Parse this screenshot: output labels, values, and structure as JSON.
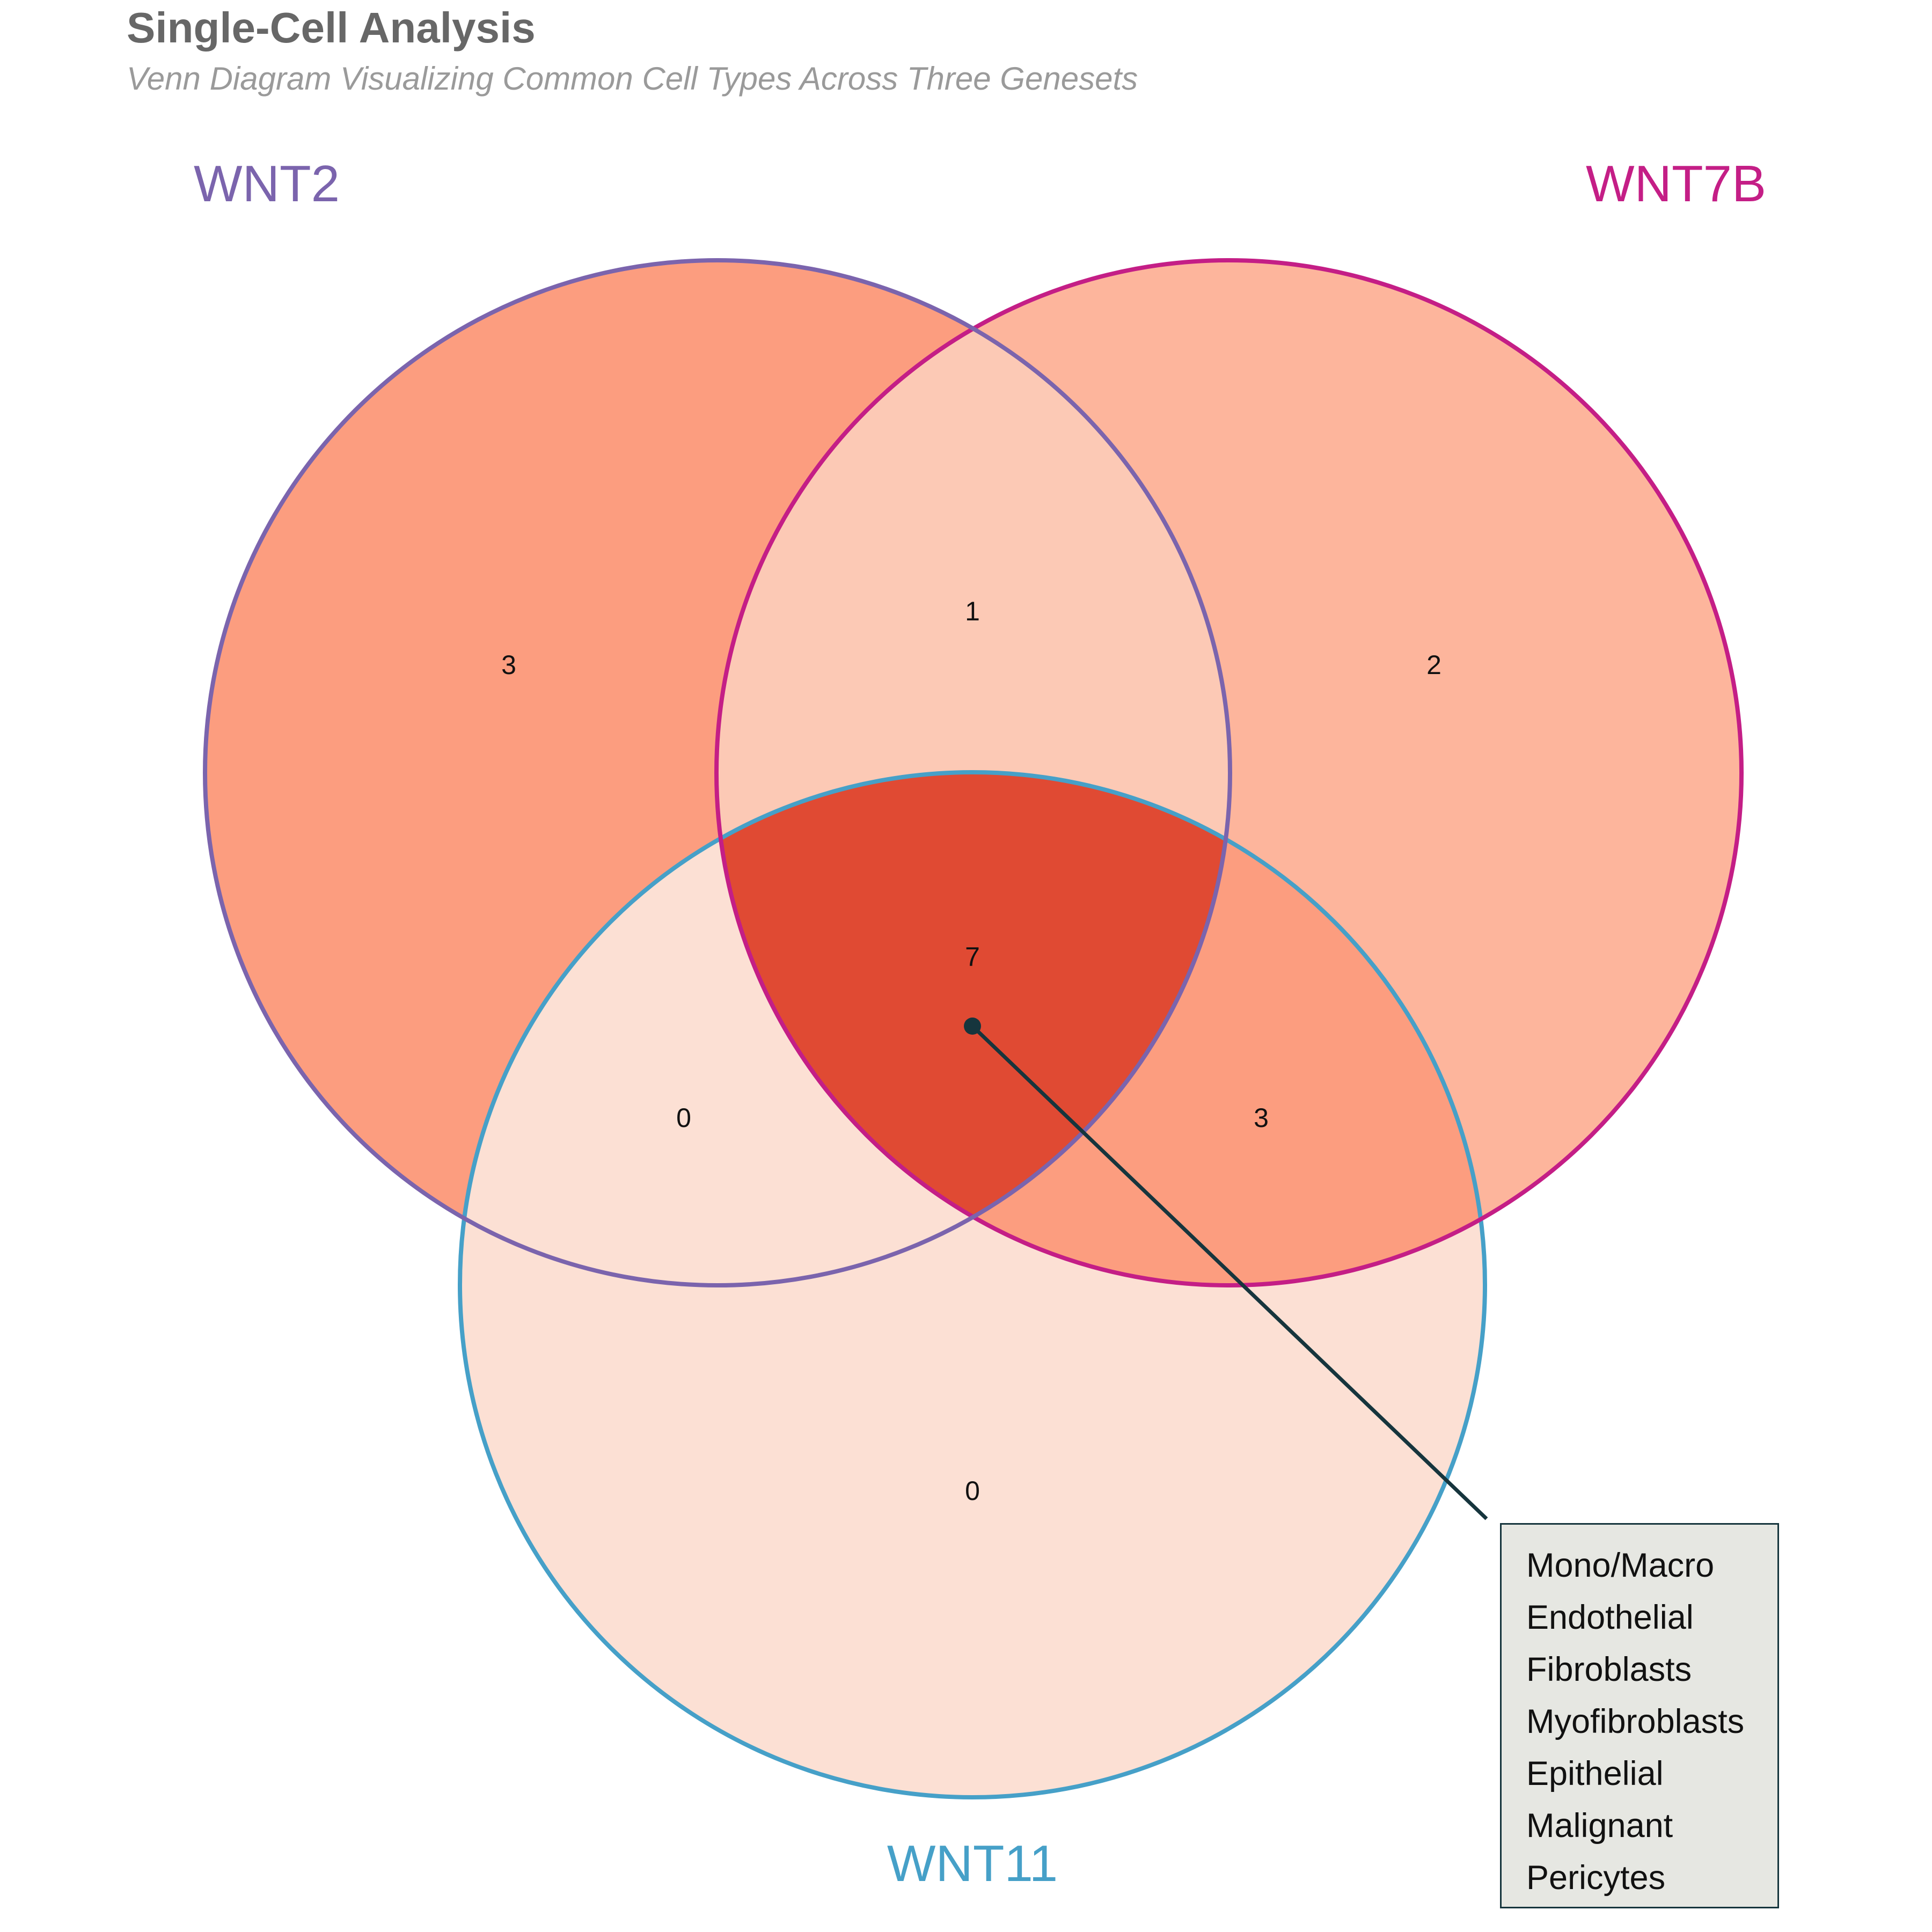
{
  "title": "Single-Cell Analysis",
  "subtitle": "Venn Diagram Visualizing Common Cell Types Across Three Genesets",
  "sets": [
    {
      "name": "WNT2",
      "color": "#7b64ad"
    },
    {
      "name": "WNT7B",
      "color": "#c41e86"
    },
    {
      "name": "WNT11",
      "color": "#46a0c8"
    }
  ],
  "chart_data": {
    "type": "venn",
    "regions": {
      "WNT2_only": 3,
      "WNT7B_only": 2,
      "WNT11_only": 0,
      "WNT2_WNT7B": 1,
      "WNT2_WNT11": 0,
      "WNT7B_WNT11": 3,
      "all_three": 7
    },
    "region_labels": {
      "WNT2_only": "3",
      "WNT7B_only": "2",
      "WNT11_only": "0",
      "WNT2_WNT7B": "1",
      "WNT2_WNT11": "0",
      "WNT7B_WNT11": "3",
      "all_three": "7"
    },
    "region_fills": {
      "WNT2_only": "#fc9d7f",
      "WNT7B_only": "#fdb59c",
      "WNT11_only": "#fce0d4",
      "WNT2_WNT7B": "#fcc9b5",
      "WNT2_WNT11": "#fce0d4",
      "WNT7B_WNT11": "#fc9d7f",
      "all_three": "#e04a33"
    },
    "annotation": {
      "region": "all_three",
      "items": [
        "Mono/Macro",
        "Endothelial",
        "Fibroblasts",
        "Myofibroblasts",
        "Epithelial",
        "Malignant",
        "Pericytes"
      ],
      "line_color": "#16353d"
    }
  }
}
